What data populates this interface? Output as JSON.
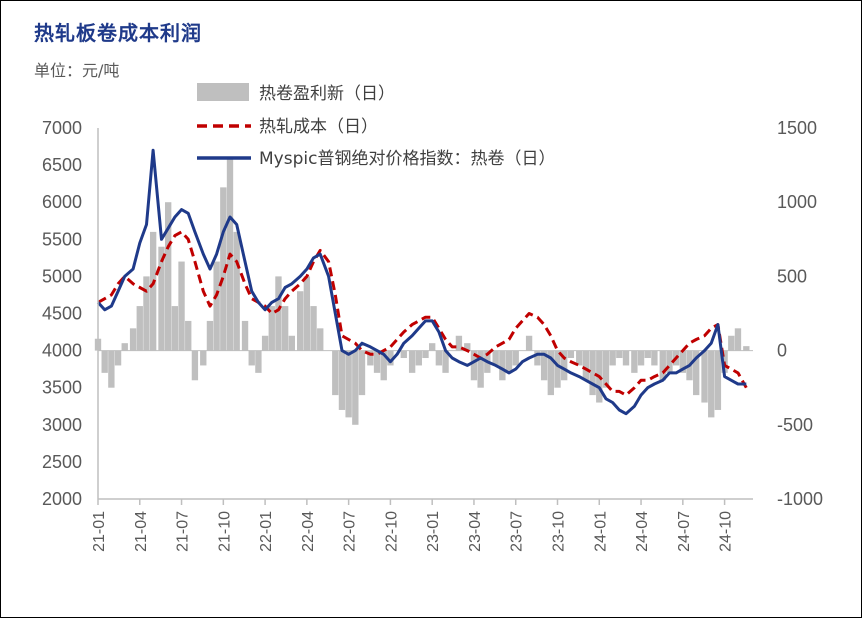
{
  "title": "热轧板卷成本利润",
  "unit_label": "单位：元/吨",
  "colors": {
    "profit": "#bfbfbf",
    "cost": "#c00000",
    "index": "#1f3a8a",
    "axis": "#bfbfbf",
    "text": "#595959",
    "title": "#1f3a8a"
  },
  "chart_data": {
    "type": "line",
    "x_ticks": [
      "21-01",
      "21-04",
      "21-07",
      "21-10",
      "22-01",
      "22-04",
      "22-07",
      "22-10",
      "23-01",
      "23-04",
      "23-07",
      "23-10",
      "24-01",
      "24-04",
      "24-07",
      "24-10"
    ],
    "x_range": [
      "2021-01",
      "2024-11"
    ],
    "y_left": {
      "ticks": [
        "7000",
        "6500",
        "6000",
        "5500",
        "5000",
        "4500",
        "4000",
        "3500",
        "3000",
        "2500",
        "2000"
      ],
      "range": [
        2000,
        7000
      ]
    },
    "y_right": {
      "ticks": [
        "1500",
        "1000",
        "500",
        "0",
        "-500",
        "-1000"
      ],
      "range": [
        -1000,
        1500
      ]
    },
    "legend": [
      {
        "label": "热卷盈利新（日）",
        "kind": "area"
      },
      {
        "label": "热轧成本（日）",
        "kind": "dash"
      },
      {
        "label": "Myspic普钢绝对价格指数：热卷（日）",
        "kind": "line"
      }
    ],
    "series": [
      {
        "name": "热卷盈利新（日）",
        "axis": "right",
        "type": "area",
        "x": [
          2021.0,
          2021.04,
          2021.08,
          2021.12,
          2021.16,
          2021.21,
          2021.25,
          2021.29,
          2021.33,
          2021.38,
          2021.42,
          2021.46,
          2021.5,
          2021.54,
          2021.58,
          2021.63,
          2021.67,
          2021.71,
          2021.75,
          2021.79,
          2021.83,
          2021.88,
          2021.92,
          2021.96,
          2022.0,
          2022.04,
          2022.08,
          2022.12,
          2022.16,
          2022.21,
          2022.25,
          2022.29,
          2022.33,
          2022.38,
          2022.42,
          2022.46,
          2022.5,
          2022.54,
          2022.58,
          2022.63,
          2022.67,
          2022.71,
          2022.75,
          2022.79,
          2022.83,
          2022.88,
          2022.92,
          2022.96,
          2023.0,
          2023.04,
          2023.08,
          2023.12,
          2023.16,
          2023.21,
          2023.25,
          2023.29,
          2023.33,
          2023.38,
          2023.42,
          2023.46,
          2023.5,
          2023.54,
          2023.58,
          2023.63,
          2023.67,
          2023.71,
          2023.75,
          2023.79,
          2023.83,
          2023.88,
          2023.92,
          2023.96,
          2024.0,
          2024.04,
          2024.08,
          2024.12,
          2024.16,
          2024.21,
          2024.25,
          2024.29,
          2024.33,
          2024.38,
          2024.42,
          2024.46,
          2024.5,
          2024.54,
          2024.58,
          2024.63,
          2024.67,
          2024.71,
          2024.75,
          2024.79,
          2024.83,
          2024.88
        ],
        "values": [
          80,
          -150,
          -250,
          -100,
          50,
          150,
          300,
          500,
          800,
          700,
          1000,
          300,
          600,
          200,
          -200,
          -100,
          200,
          600,
          1100,
          1300,
          800,
          200,
          -100,
          -150,
          100,
          300,
          500,
          300,
          100,
          400,
          500,
          300,
          150,
          0,
          -300,
          -400,
          -450,
          -500,
          -300,
          -100,
          -150,
          -200,
          -100,
          0,
          -50,
          -150,
          -100,
          -50,
          50,
          -100,
          -150,
          0,
          100,
          50,
          -200,
          -250,
          -150,
          -100,
          -200,
          -150,
          -100,
          0,
          100,
          -100,
          -200,
          -300,
          -250,
          -200,
          -50,
          -100,
          -200,
          -300,
          -350,
          -250,
          -100,
          -50,
          -100,
          -150,
          -100,
          -50,
          -100,
          -200,
          -150,
          -100,
          -150,
          -200,
          -300,
          -350,
          -450,
          -400,
          -150,
          100,
          150,
          30
        ]
      },
      {
        "name": "热轧成本（日）",
        "axis": "left",
        "type": "line",
        "style": "dashed",
        "x": [
          2021.0,
          2021.04,
          2021.08,
          2021.12,
          2021.16,
          2021.21,
          2021.25,
          2021.29,
          2021.33,
          2021.38,
          2021.42,
          2021.46,
          2021.5,
          2021.54,
          2021.58,
          2021.63,
          2021.67,
          2021.71,
          2021.75,
          2021.79,
          2021.83,
          2021.88,
          2021.92,
          2021.96,
          2022.0,
          2022.04,
          2022.08,
          2022.12,
          2022.16,
          2022.21,
          2022.25,
          2022.29,
          2022.33,
          2022.38,
          2022.42,
          2022.46,
          2022.5,
          2022.54,
          2022.58,
          2022.63,
          2022.67,
          2022.71,
          2022.75,
          2022.79,
          2022.83,
          2022.88,
          2022.92,
          2022.96,
          2023.0,
          2023.04,
          2023.08,
          2023.12,
          2023.16,
          2023.21,
          2023.25,
          2023.29,
          2023.33,
          2023.38,
          2023.42,
          2023.46,
          2023.5,
          2023.54,
          2023.58,
          2023.63,
          2023.67,
          2023.71,
          2023.75,
          2023.79,
          2023.83,
          2023.88,
          2023.92,
          2023.96,
          2024.0,
          2024.04,
          2024.08,
          2024.12,
          2024.16,
          2024.21,
          2024.25,
          2024.29,
          2024.33,
          2024.38,
          2024.42,
          2024.46,
          2024.5,
          2024.54,
          2024.58,
          2024.63,
          2024.67,
          2024.71,
          2024.75,
          2024.79,
          2024.83,
          2024.88
        ],
        "values": [
          4650,
          4700,
          4750,
          4900,
          5000,
          4900,
          4850,
          4800,
          4900,
          5200,
          5400,
          5550,
          5600,
          5500,
          5200,
          4800,
          4600,
          4750,
          5000,
          5300,
          5200,
          4900,
          4700,
          4650,
          4600,
          4500,
          4550,
          4700,
          4800,
          4900,
          5000,
          5200,
          5350,
          5200,
          4750,
          4200,
          4150,
          4100,
          4000,
          3950,
          3950,
          4000,
          4050,
          4150,
          4250,
          4350,
          4400,
          4450,
          4450,
          4300,
          4150,
          4050,
          4050,
          4000,
          3950,
          3900,
          3950,
          4050,
          4100,
          4150,
          4300,
          4400,
          4500,
          4450,
          4350,
          4200,
          4000,
          3900,
          3850,
          3800,
          3750,
          3700,
          3650,
          3550,
          3450,
          3450,
          3400,
          3500,
          3600,
          3600,
          3650,
          3700,
          3800,
          3900,
          4000,
          4100,
          4150,
          4200,
          4300,
          4350,
          3800,
          3750,
          3700,
          3500
        ]
      },
      {
        "name": "Myspic普钢绝对价格指数：热卷（日）",
        "axis": "left",
        "type": "line",
        "style": "solid",
        "x": [
          2021.0,
          2021.04,
          2021.08,
          2021.12,
          2021.16,
          2021.21,
          2021.25,
          2021.29,
          2021.33,
          2021.38,
          2021.42,
          2021.46,
          2021.5,
          2021.54,
          2021.58,
          2021.63,
          2021.67,
          2021.71,
          2021.75,
          2021.79,
          2021.83,
          2021.88,
          2021.92,
          2021.96,
          2022.0,
          2022.04,
          2022.08,
          2022.12,
          2022.16,
          2022.21,
          2022.25,
          2022.29,
          2022.33,
          2022.38,
          2022.42,
          2022.46,
          2022.5,
          2022.54,
          2022.58,
          2022.63,
          2022.67,
          2022.71,
          2022.75,
          2022.79,
          2022.83,
          2022.88,
          2022.92,
          2022.96,
          2023.0,
          2023.04,
          2023.08,
          2023.12,
          2023.16,
          2023.21,
          2023.25,
          2023.29,
          2023.33,
          2023.38,
          2023.42,
          2023.46,
          2023.5,
          2023.54,
          2023.58,
          2023.63,
          2023.67,
          2023.71,
          2023.75,
          2023.79,
          2023.83,
          2023.88,
          2023.92,
          2023.96,
          2024.0,
          2024.04,
          2024.08,
          2024.12,
          2024.16,
          2024.21,
          2024.25,
          2024.29,
          2024.33,
          2024.38,
          2024.42,
          2024.46,
          2024.5,
          2024.54,
          2024.58,
          2024.63,
          2024.67,
          2024.71,
          2024.75,
          2024.79,
          2024.83,
          2024.88
        ],
        "values": [
          4650,
          4550,
          4600,
          4800,
          5000,
          5100,
          5450,
          5700,
          6700,
          5500,
          5650,
          5800,
          5900,
          5850,
          5600,
          5300,
          5100,
          5300,
          5600,
          5800,
          5700,
          5200,
          4800,
          4650,
          4550,
          4650,
          4700,
          4850,
          4900,
          5000,
          5100,
          5250,
          5300,
          5000,
          4500,
          4000,
          3950,
          4000,
          4100,
          4050,
          4000,
          3950,
          3850,
          3950,
          4100,
          4200,
          4300,
          4400,
          4400,
          4250,
          4000,
          3900,
          3850,
          3800,
          3850,
          3900,
          3850,
          3800,
          3750,
          3700,
          3750,
          3850,
          3900,
          3950,
          3950,
          3900,
          3800,
          3750,
          3700,
          3650,
          3600,
          3550,
          3500,
          3350,
          3300,
          3200,
          3150,
          3250,
          3400,
          3500,
          3550,
          3600,
          3700,
          3700,
          3750,
          3800,
          3900,
          4000,
          4100,
          4350,
          3650,
          3600,
          3550,
          3550
        ]
      }
    ]
  }
}
